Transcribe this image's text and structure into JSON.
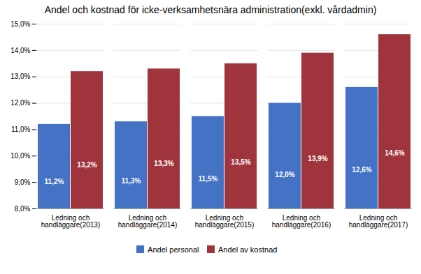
{
  "chart_data": {
    "type": "bar",
    "title": "Andel och kostnad för icke-verksamhetsnära administration(exkl. vårdadmin)",
    "categories": [
      "Ledning och\nhandläggare(2013)",
      "Ledning och\nhandläggare(2014)",
      "Ledning och\nhandläggare(2015)",
      "Ledning och\nhandläggare(2016)",
      "Ledning och\nhandläggare(2017)"
    ],
    "series": [
      {
        "name": "Andel personal",
        "color": "#4472C4",
        "values": [
          11.2,
          11.3,
          11.5,
          12.0,
          12.6
        ],
        "value_labels": [
          "11,2%",
          "11,3%",
          "11,5%",
          "12,0%",
          "12,6%"
        ]
      },
      {
        "name": "Andel av kostnad",
        "color": "#A0343C",
        "values": [
          13.2,
          13.3,
          13.5,
          13.9,
          14.6
        ],
        "value_labels": [
          "13,2%",
          "13,3%",
          "13,5%",
          "13,9%",
          "14,6%"
        ]
      }
    ],
    "ylim": [
      8.0,
      15.0
    ],
    "yticks": [
      {
        "value": 8.0,
        "label": "8,0%"
      },
      {
        "value": 9.0,
        "label": "9,0%"
      },
      {
        "value": 10.0,
        "label": "10,0%"
      },
      {
        "value": 11.0,
        "label": "11,0%"
      },
      {
        "value": 12.0,
        "label": "12,0%"
      },
      {
        "value": 13.0,
        "label": "13,0%"
      },
      {
        "value": 14.0,
        "label": "14,0%"
      },
      {
        "value": 15.0,
        "label": "15,0%"
      }
    ],
    "grid": true,
    "legend": "bottom",
    "data_labels": true
  }
}
